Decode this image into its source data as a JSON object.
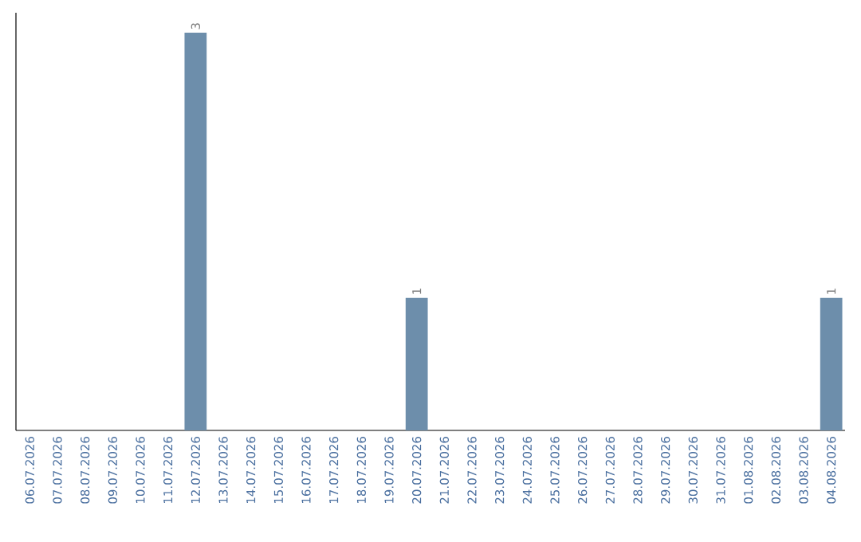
{
  "chart_data": {
    "type": "bar",
    "categories": [
      "06.07.2026",
      "07.07.2026",
      "08.07.2026",
      "09.07.2026",
      "10.07.2026",
      "11.07.2026",
      "12.07.2026",
      "13.07.2026",
      "14.07.2026",
      "15.07.2026",
      "16.07.2026",
      "17.07.2026",
      "18.07.2026",
      "19.07.2026",
      "20.07.2026",
      "21.07.2026",
      "22.07.2026",
      "23.07.2026",
      "24.07.2026",
      "25.07.2026",
      "26.07.2026",
      "27.07.2026",
      "28.07.2026",
      "29.07.2026",
      "30.07.2026",
      "31.07.2026",
      "01.08.2026",
      "02.08.2026",
      "03.08.2026",
      "04.08.2026"
    ],
    "values": [
      0,
      0,
      0,
      0,
      0,
      0,
      3,
      0,
      0,
      0,
      0,
      0,
      0,
      0,
      1,
      0,
      0,
      0,
      0,
      0,
      0,
      0,
      0,
      0,
      0,
      0,
      0,
      0,
      0,
      1
    ],
    "value_labels": [
      null,
      null,
      null,
      null,
      null,
      null,
      "3",
      null,
      null,
      null,
      null,
      null,
      null,
      null,
      "1",
      null,
      null,
      null,
      null,
      null,
      null,
      null,
      null,
      null,
      null,
      null,
      null,
      null,
      null,
      "1"
    ],
    "color": "#6d8eab",
    "ylim": [
      0,
      3.15
    ],
    "tick_labels": "x"
  }
}
